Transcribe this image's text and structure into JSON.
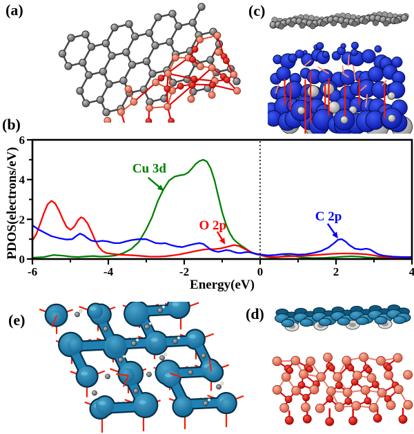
{
  "figure": {
    "background": "#ffffff",
    "panels": {
      "a": {
        "label": "(a)",
        "depicts": "top view of graphene sheet (gray C atoms) with Cu2O cluster (salmon Cu, red O atoms)"
      },
      "b": {
        "label": "(b)",
        "depicts": "projected density of states plot"
      },
      "c": {
        "label": "(c)",
        "depicts": "side view of graphene sheet above blue charge-density isosurface with red sticks and gray spheres"
      },
      "d": {
        "label": "(d)",
        "depicts": "side view of teal isosurface sheet above Cu2O slab of salmon Cu and red O atoms"
      },
      "e": {
        "label": "(e)",
        "depicts": "top view of teal charge-density isosurface network with red sticks and gray C atoms"
      }
    },
    "colors": {
      "carbon_gray": "#6e6e6e",
      "copper_salmon": "#ef8672",
      "oxygen_red": "#e60000",
      "isosurface_blue": "#1022c8",
      "isosurface_teal": "#1e82b4",
      "isosurface_teal_dark": "#06304a",
      "stick_red": "#f51b00",
      "stick_salmon": "#ff8a6e"
    }
  },
  "chart_data": {
    "type": "line",
    "title": "",
    "xlabel": "Energy(eV)",
    "ylabel": "PDOS(electrons/eV)",
    "xlim": [
      -6,
      4
    ],
    "ylim": [
      0,
      6
    ],
    "x_major_ticks": [
      -6,
      -4,
      -2,
      0,
      2,
      4
    ],
    "x_minor_ticks": [
      -5,
      -3,
      -1,
      1,
      3
    ],
    "y_major_ticks": [
      0,
      2,
      4,
      6
    ],
    "y_minor_ticks": [
      1,
      3,
      5
    ],
    "grid": false,
    "legend_position": "inline-annotations",
    "zero_line": {
      "x": 0,
      "style": "dashed",
      "color": "#000000"
    },
    "series": [
      {
        "name": "Cu 3d",
        "color": "#008000",
        "points": [
          [
            -6,
            0.07
          ],
          [
            -5.7,
            0.1
          ],
          [
            -5.45,
            0.2
          ],
          [
            -5.2,
            0.17
          ],
          [
            -5,
            0.12
          ],
          [
            -4.8,
            0.1
          ],
          [
            -4.6,
            0.13
          ],
          [
            -4.4,
            0.15
          ],
          [
            -4.2,
            0.12
          ],
          [
            -4,
            0.14
          ],
          [
            -3.8,
            0.18
          ],
          [
            -3.6,
            0.3
          ],
          [
            -3.4,
            0.5
          ],
          [
            -3.2,
            0.85
          ],
          [
            -3,
            1.5
          ],
          [
            -2.85,
            2.1
          ],
          [
            -2.7,
            2.9
          ],
          [
            -2.55,
            3.5
          ],
          [
            -2.4,
            3.95
          ],
          [
            -2.25,
            4.15
          ],
          [
            -2.1,
            4.22
          ],
          [
            -2,
            4.25
          ],
          [
            -1.9,
            4.35
          ],
          [
            -1.8,
            4.55
          ],
          [
            -1.7,
            4.78
          ],
          [
            -1.6,
            4.93
          ],
          [
            -1.5,
            5.0
          ],
          [
            -1.4,
            4.9
          ],
          [
            -1.3,
            4.55
          ],
          [
            -1.2,
            3.95
          ],
          [
            -1.1,
            3.15
          ],
          [
            -1,
            2.35
          ],
          [
            -0.9,
            1.75
          ],
          [
            -0.8,
            1.3
          ],
          [
            -0.7,
            1.0
          ],
          [
            -0.6,
            0.82
          ],
          [
            -0.5,
            0.68
          ],
          [
            -0.4,
            0.55
          ],
          [
            -0.3,
            0.42
          ],
          [
            -0.2,
            0.3
          ],
          [
            -0.1,
            0.24
          ],
          [
            0,
            0.2
          ],
          [
            0.15,
            0.12
          ],
          [
            0.3,
            0.08
          ],
          [
            0.5,
            0.1
          ],
          [
            0.7,
            0.18
          ],
          [
            0.9,
            0.15
          ],
          [
            1.1,
            0.08
          ],
          [
            1.4,
            0.05
          ],
          [
            1.7,
            0.06
          ],
          [
            2,
            0.09
          ],
          [
            2.2,
            0.12
          ],
          [
            2.4,
            0.14
          ],
          [
            2.6,
            0.12
          ],
          [
            2.8,
            0.08
          ],
          [
            3,
            0.06
          ],
          [
            3.3,
            0.04
          ],
          [
            3.6,
            0.03
          ],
          [
            4,
            0.03
          ]
        ]
      },
      {
        "name": "O 2p",
        "color": "#ff0000",
        "points": [
          [
            -6,
            0.93
          ],
          [
            -5.9,
            1.25
          ],
          [
            -5.8,
            1.75
          ],
          [
            -5.7,
            2.3
          ],
          [
            -5.6,
            2.75
          ],
          [
            -5.5,
            2.93
          ],
          [
            -5.4,
            2.8
          ],
          [
            -5.3,
            2.45
          ],
          [
            -5.2,
            2.0
          ],
          [
            -5.1,
            1.62
          ],
          [
            -5,
            1.47
          ],
          [
            -4.9,
            1.62
          ],
          [
            -4.8,
            1.95
          ],
          [
            -4.72,
            2.1
          ],
          [
            -4.65,
            2.05
          ],
          [
            -4.55,
            1.8
          ],
          [
            -4.45,
            1.4
          ],
          [
            -4.35,
            0.95
          ],
          [
            -4.25,
            0.6
          ],
          [
            -4.15,
            0.4
          ],
          [
            -4.05,
            0.3
          ],
          [
            -3.9,
            0.26
          ],
          [
            -3.7,
            0.22
          ],
          [
            -3.5,
            0.2
          ],
          [
            -3.3,
            0.18
          ],
          [
            -3.1,
            0.15
          ],
          [
            -2.9,
            0.12
          ],
          [
            -2.7,
            0.12
          ],
          [
            -2.5,
            0.14
          ],
          [
            -2.3,
            0.18
          ],
          [
            -2.1,
            0.24
          ],
          [
            -1.9,
            0.32
          ],
          [
            -1.7,
            0.4
          ],
          [
            -1.5,
            0.47
          ],
          [
            -1.35,
            0.5
          ],
          [
            -1.2,
            0.5
          ],
          [
            -1.05,
            0.53
          ],
          [
            -0.9,
            0.6
          ],
          [
            -0.8,
            0.65
          ],
          [
            -0.68,
            0.7
          ],
          [
            -0.55,
            0.65
          ],
          [
            -0.45,
            0.55
          ],
          [
            -0.3,
            0.4
          ],
          [
            -0.15,
            0.28
          ],
          [
            0,
            0.2
          ],
          [
            0.2,
            0.12
          ],
          [
            0.4,
            0.1
          ],
          [
            0.6,
            0.12
          ],
          [
            0.8,
            0.14
          ],
          [
            1,
            0.15
          ],
          [
            1.3,
            0.18
          ],
          [
            1.6,
            0.22
          ],
          [
            1.9,
            0.26
          ],
          [
            2.2,
            0.28
          ],
          [
            2.5,
            0.27
          ],
          [
            2.8,
            0.24
          ],
          [
            3,
            0.18
          ],
          [
            3.2,
            0.12
          ],
          [
            3.5,
            0.08
          ],
          [
            3.8,
            0.06
          ],
          [
            4,
            0.05
          ]
        ]
      },
      {
        "name": "C 2p",
        "color": "#0000ff",
        "points": [
          [
            -6,
            1.7
          ],
          [
            -5.85,
            1.5
          ],
          [
            -5.7,
            1.35
          ],
          [
            -5.5,
            1.15
          ],
          [
            -5.3,
            1.05
          ],
          [
            -5.1,
            0.98
          ],
          [
            -4.95,
            1.0
          ],
          [
            -4.85,
            1.15
          ],
          [
            -4.75,
            1.28
          ],
          [
            -4.65,
            1.2
          ],
          [
            -4.55,
            1.05
          ],
          [
            -4.45,
            0.93
          ],
          [
            -4.3,
            0.88
          ],
          [
            -4.15,
            0.92
          ],
          [
            -4,
            0.88
          ],
          [
            -3.85,
            0.8
          ],
          [
            -3.7,
            0.8
          ],
          [
            -3.55,
            0.88
          ],
          [
            -3.4,
            0.95
          ],
          [
            -3.2,
            1.0
          ],
          [
            -3,
            1.0
          ],
          [
            -2.9,
            0.92
          ],
          [
            -2.75,
            0.8
          ],
          [
            -2.6,
            0.78
          ],
          [
            -2.5,
            0.8
          ],
          [
            -2.35,
            0.7
          ],
          [
            -2.2,
            0.63
          ],
          [
            -2.05,
            0.6
          ],
          [
            -1.9,
            0.68
          ],
          [
            -1.75,
            0.75
          ],
          [
            -1.6,
            0.8
          ],
          [
            -1.5,
            0.76
          ],
          [
            -1.4,
            0.62
          ],
          [
            -1.3,
            0.47
          ],
          [
            -1.2,
            0.4
          ],
          [
            -1.1,
            0.36
          ],
          [
            -1,
            0.4
          ],
          [
            -0.9,
            0.45
          ],
          [
            -0.8,
            0.43
          ],
          [
            -0.7,
            0.36
          ],
          [
            -0.6,
            0.31
          ],
          [
            -0.5,
            0.3
          ],
          [
            -0.4,
            0.34
          ],
          [
            -0.3,
            0.35
          ],
          [
            -0.2,
            0.3
          ],
          [
            -0.1,
            0.26
          ],
          [
            0,
            0.23
          ],
          [
            0.2,
            0.18
          ],
          [
            0.4,
            0.2
          ],
          [
            0.6,
            0.25
          ],
          [
            0.8,
            0.26
          ],
          [
            1,
            0.22
          ],
          [
            1.2,
            0.24
          ],
          [
            1.4,
            0.3
          ],
          [
            1.6,
            0.4
          ],
          [
            1.8,
            0.58
          ],
          [
            1.95,
            0.8
          ],
          [
            2.05,
            0.97
          ],
          [
            2.15,
            1.0
          ],
          [
            2.25,
            0.88
          ],
          [
            2.35,
            0.7
          ],
          [
            2.5,
            0.52
          ],
          [
            2.65,
            0.48
          ],
          [
            2.8,
            0.52
          ],
          [
            2.9,
            0.48
          ],
          [
            3,
            0.36
          ],
          [
            3.1,
            0.25
          ],
          [
            3.25,
            0.17
          ],
          [
            3.5,
            0.12
          ],
          [
            3.75,
            0.1
          ],
          [
            4,
            0.1
          ]
        ]
      }
    ],
    "annotations": [
      {
        "text": "Cu 3d",
        "color": "#008000",
        "text_xy": [
          -2.92,
          4.35
        ],
        "arrow_from": [
          -2.95,
          4.1
        ],
        "arrow_to": [
          -2.58,
          3.5
        ]
      },
      {
        "text": "O 2p",
        "color": "#ff0000",
        "text_xy": [
          -1.25,
          1.5
        ],
        "arrow_from": [
          -1.13,
          1.38
        ],
        "arrow_to": [
          -0.95,
          0.82
        ]
      },
      {
        "text": "C 2p",
        "color": "#0000ff",
        "text_xy": [
          1.8,
          1.95
        ],
        "arrow_from": [
          1.78,
          1.78
        ],
        "arrow_to": [
          2.02,
          1.12
        ]
      }
    ]
  }
}
